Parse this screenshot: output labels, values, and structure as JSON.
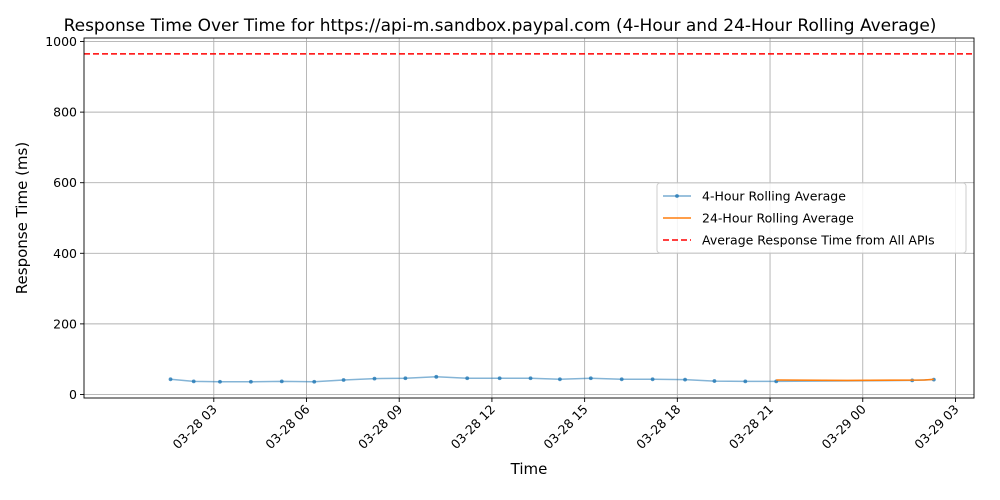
{
  "chart_data": {
    "type": "line",
    "title": "Response Time Over Time for https://api-m.sandbox.paypal.com (4-Hour and 24-Hour Rolling Average)",
    "xlabel": "Time",
    "ylabel": "Response Time (ms)",
    "x_range_hours": [
      -1.2,
      27.6
    ],
    "x_ticks": [
      {
        "hour": 3,
        "label": "03-28 03"
      },
      {
        "hour": 6,
        "label": "03-28 06"
      },
      {
        "hour": 9,
        "label": "03-28 09"
      },
      {
        "hour": 12,
        "label": "03-28 12"
      },
      {
        "hour": 15,
        "label": "03-28 15"
      },
      {
        "hour": 18,
        "label": "03-28 18"
      },
      {
        "hour": 21,
        "label": "03-28 21"
      },
      {
        "hour": 24,
        "label": "03-29 00"
      },
      {
        "hour": 27,
        "label": "03-29 03"
      }
    ],
    "ylim": [
      -10,
      1010
    ],
    "y_ticks": [
      0,
      200,
      400,
      600,
      800,
      1000
    ],
    "grid": true,
    "legend_position": "center-right",
    "series": [
      {
        "name": "4-Hour Rolling Average",
        "color": "#1f77b4",
        "style": "line-markers",
        "points": [
          [
            1.6,
            43
          ],
          [
            2.35,
            37
          ],
          [
            3.2,
            36
          ],
          [
            4.2,
            36
          ],
          [
            5.2,
            37
          ],
          [
            6.25,
            36
          ],
          [
            7.2,
            41
          ],
          [
            8.2,
            45
          ],
          [
            9.2,
            46
          ],
          [
            10.2,
            50
          ],
          [
            11.2,
            46
          ],
          [
            12.25,
            46
          ],
          [
            13.25,
            46
          ],
          [
            14.2,
            43
          ],
          [
            15.2,
            46
          ],
          [
            16.2,
            43
          ],
          [
            17.2,
            43
          ],
          [
            18.25,
            42
          ],
          [
            19.2,
            38
          ],
          [
            20.2,
            37
          ],
          [
            21.2,
            37
          ],
          [
            25.6,
            40
          ],
          [
            26.3,
            42
          ]
        ]
      },
      {
        "name": "24-Hour Rolling Average",
        "color": "#ff7f0e",
        "style": "line",
        "points": [
          [
            21.2,
            41
          ],
          [
            23.5,
            40
          ],
          [
            26.0,
            41
          ],
          [
            26.3,
            43
          ]
        ]
      },
      {
        "name": "Average Response Time from All APIs",
        "color": "#ff0000",
        "style": "dashed-hline",
        "y": 965
      }
    ]
  }
}
